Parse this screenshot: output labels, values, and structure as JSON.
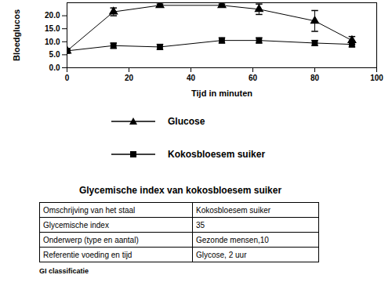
{
  "chart_data": {
    "type": "line",
    "y_label": "Bloedglucos",
    "x_label": "Tijd in minuten",
    "x": [
      0,
      15,
      30,
      50,
      62,
      80,
      92
    ],
    "series": [
      {
        "name": "Glucose",
        "color": "#000000",
        "marker": "triangle",
        "values": [
          6.5,
          21.5,
          24.0,
          24.0,
          22.5,
          18.0,
          10.5
        ],
        "errors": [
          0.5,
          1.5,
          0.5,
          0.5,
          2.0,
          4.0,
          1.5
        ]
      },
      {
        "name": "Kokosbloesem suiker",
        "color": "#000000",
        "marker": "square",
        "values": [
          6.5,
          8.5,
          8.0,
          10.5,
          10.5,
          9.5,
          9.0
        ],
        "errors": [
          0.5,
          1.0,
          1.0,
          1.0,
          1.0,
          1.0,
          1.0
        ]
      }
    ],
    "xlim": [
      0,
      100
    ],
    "xticks": [
      0,
      20,
      40,
      60,
      80,
      100
    ],
    "ylim": [
      0,
      25
    ],
    "yticks": [
      {
        "value": 0,
        "label": "0.0"
      },
      {
        "value": 5,
        "label": "5.0"
      },
      {
        "value": 10,
        "label": "10.0"
      },
      {
        "value": 15,
        "label": "15.0"
      },
      {
        "value": 20,
        "label": "20.0"
      }
    ],
    "legend": "bottom"
  },
  "table": {
    "title": "Glycemische index van kokosbloesem suiker",
    "rows": [
      [
        "Omschrijving van het staal",
        "Kokosbloesem suiker"
      ],
      [
        "Glycemische index",
        "35"
      ],
      [
        "Onderwerp (type en aantal)",
        "Gezonde mensen,10"
      ],
      [
        "Referentie voeding en tijd",
        "Glycose, 2 uur"
      ]
    ]
  },
  "footer": "GI classificatie"
}
